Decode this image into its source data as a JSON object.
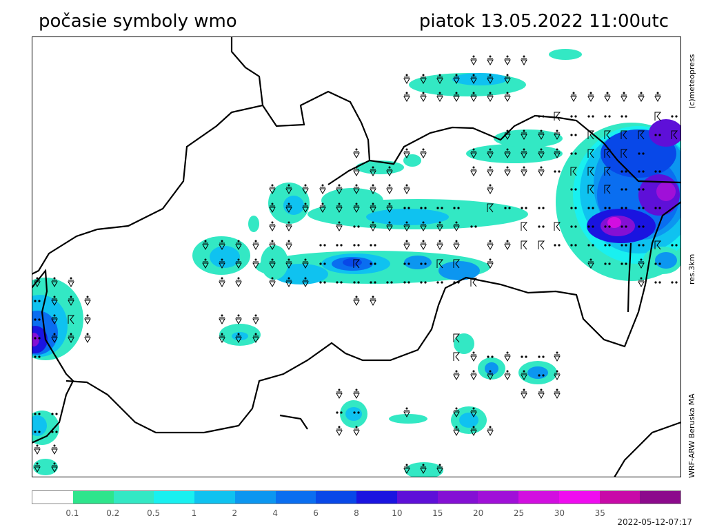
{
  "title": {
    "left": "počasie symboly wmo",
    "right": "piatok 13.05.2022 11:00utc"
  },
  "side_labels": {
    "copyright": "(c)meteopress",
    "resolution": "res.3km",
    "model": "WRF-ARW Beruska MA"
  },
  "legend": {
    "colors": [
      "#ffffff",
      "#2ee58c",
      "#33e8c4",
      "#19f0f0",
      "#0fc2f0",
      "#0c96f0",
      "#0a6ef0",
      "#0848e8",
      "#1a14e0",
      "#5e10d8",
      "#8410d4",
      "#a010d8",
      "#d20ee0",
      "#f00cf0",
      "#c80aa8",
      "#8c0a8c"
    ],
    "labels": [
      "0.1",
      "0.2",
      "0.5",
      "1",
      "2",
      "4",
      "6",
      "8",
      "10",
      "15",
      "20",
      "25",
      "30",
      "35"
    ]
  },
  "timestamp": "2022-05-12-07:17",
  "icons": {
    "showers": "rain-shower-icon",
    "thunder": "thunderstorm-icon",
    "rain": "rain-dots-icon"
  }
}
